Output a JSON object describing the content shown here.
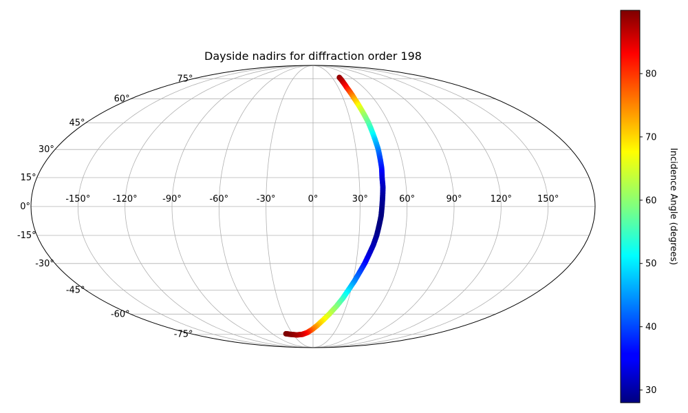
{
  "chart_data": {
    "type": "scatter",
    "projection": "mollweide",
    "title": "Dayside nadirs for diffraction order 198",
    "x_tick_labels": [
      "-150°",
      "-120°",
      "-90°",
      "-60°",
      "-30°",
      "0°",
      "30°",
      "60°",
      "90°",
      "120°",
      "150°"
    ],
    "x_ticks_deg": [
      -150,
      -120,
      -90,
      -60,
      -30,
      0,
      30,
      60,
      90,
      120,
      150
    ],
    "y_tick_labels": [
      "75°",
      "60°",
      "45°",
      "30°",
      "15°",
      "0°",
      "-15°",
      "-30°",
      "-45°",
      "-60°",
      "-75°"
    ],
    "y_ticks_deg": [
      75,
      60,
      45,
      30,
      15,
      0,
      -15,
      -30,
      -45,
      -60,
      -75
    ],
    "grid": true,
    "colormap": "jet",
    "colorbar": {
      "label": "Incidence Angle (degrees)",
      "range": [
        28,
        90
      ],
      "tick_values": [
        30,
        40,
        50,
        60,
        70,
        80
      ],
      "tick_labels": [
        "30",
        "40",
        "50",
        "60",
        "70",
        "80"
      ],
      "placement": "right"
    },
    "series": [
      {
        "points": [
          {
            "lon": 41.5,
            "lat": 76.0,
            "c": 89
          },
          {
            "lon": 40.5,
            "lat": 72.0,
            "c": 86
          },
          {
            "lon": 40.0,
            "lat": 68.0,
            "c": 82
          },
          {
            "lon": 40.5,
            "lat": 64.0,
            "c": 77
          },
          {
            "lon": 41.0,
            "lat": 60.0,
            "c": 72
          },
          {
            "lon": 42.0,
            "lat": 55.0,
            "c": 66
          },
          {
            "lon": 43.0,
            "lat": 50.0,
            "c": 61
          },
          {
            "lon": 44.0,
            "lat": 45.0,
            "c": 57
          },
          {
            "lon": 44.5,
            "lat": 40.0,
            "c": 53
          },
          {
            "lon": 45.0,
            "lat": 35.0,
            "c": 48
          },
          {
            "lon": 45.5,
            "lat": 30.0,
            "c": 44
          },
          {
            "lon": 45.5,
            "lat": 25.0,
            "c": 40
          },
          {
            "lon": 45.5,
            "lat": 20.0,
            "c": 37
          },
          {
            "lon": 45.0,
            "lat": 15.0,
            "c": 34
          },
          {
            "lon": 45.0,
            "lat": 10.0,
            "c": 32
          },
          {
            "lon": 44.5,
            "lat": 5.0,
            "c": 30
          },
          {
            "lon": 44.0,
            "lat": 0.0,
            "c": 29
          },
          {
            "lon": 43.5,
            "lat": -5.0,
            "c": 28
          },
          {
            "lon": 42.5,
            "lat": -10.0,
            "c": 28
          },
          {
            "lon": 41.5,
            "lat": -15.0,
            "c": 29
          },
          {
            "lon": 40.0,
            "lat": -20.0,
            "c": 31
          },
          {
            "lon": 38.0,
            "lat": -25.0,
            "c": 33
          },
          {
            "lon": 36.0,
            "lat": -30.0,
            "c": 36
          },
          {
            "lon": 33.5,
            "lat": -35.0,
            "c": 40
          },
          {
            "lon": 31.0,
            "lat": -40.0,
            "c": 44
          },
          {
            "lon": 28.0,
            "lat": -45.0,
            "c": 49
          },
          {
            "lon": 25.0,
            "lat": -50.0,
            "c": 54
          },
          {
            "lon": 21.0,
            "lat": -55.0,
            "c": 59
          },
          {
            "lon": 16.0,
            "lat": -60.0,
            "c": 63
          },
          {
            "lon": 11.0,
            "lat": -64.0,
            "c": 67
          },
          {
            "lon": 5.0,
            "lat": -68.0,
            "c": 71
          },
          {
            "lon": -1.0,
            "lat": -71.0,
            "c": 75
          },
          {
            "lon": -8.0,
            "lat": -73.5,
            "c": 80
          },
          {
            "lon": -16.0,
            "lat": -75.0,
            "c": 84
          },
          {
            "lon": -25.0,
            "lat": -75.5,
            "c": 87
          },
          {
            "lon": -34.0,
            "lat": -75.0,
            "c": 89
          },
          {
            "lon": -40.0,
            "lat": -74.5,
            "c": 90
          }
        ]
      }
    ]
  }
}
